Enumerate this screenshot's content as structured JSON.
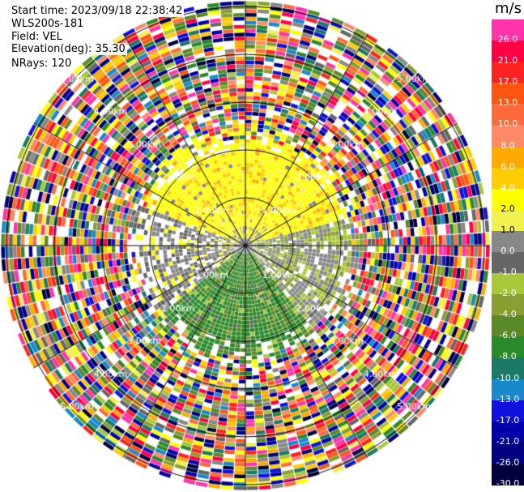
{
  "info": {
    "start_time": "Start time: 2023/09/18 22:38:42",
    "instrument": "WLS200s-181",
    "field": "Field: VEL",
    "elevation": "Elevation(deg): 35.30",
    "nrays": "NRays: 120"
  },
  "colorbar": {
    "unit": "m/s",
    "ticks": [
      "26.0",
      "21.0",
      "17.0",
      "13.0",
      "10.0",
      "8.0",
      "6.0",
      "4.0",
      "2.0",
      "1.0",
      "0.0",
      "-1.0",
      "-2.0",
      "-4.0",
      "-6.0",
      "-8.0",
      "-10.0",
      "-13.0",
      "-17.0",
      "-21.0",
      "-26.0",
      "-30.0"
    ],
    "colors": [
      "#ff33aa",
      "#ff0044",
      "#ff2222",
      "#ff5511",
      "#ff6a3a",
      "#ff8866",
      "#ffaa00",
      "#ffcc00",
      "#ffff00",
      "#f0f050",
      "#888888",
      "#666666",
      "#a8c83c",
      "#88a030",
      "#5a8a28",
      "#2a8a2a",
      "#1a7a66",
      "#1a88cc",
      "#1111dd",
      "#0000aa",
      "#000080",
      "#000040"
    ]
  },
  "range_rings": {
    "labels": [
      "1.00km",
      "2.00km",
      "3.00km",
      "4.00km",
      "5.00km"
    ]
  }
}
